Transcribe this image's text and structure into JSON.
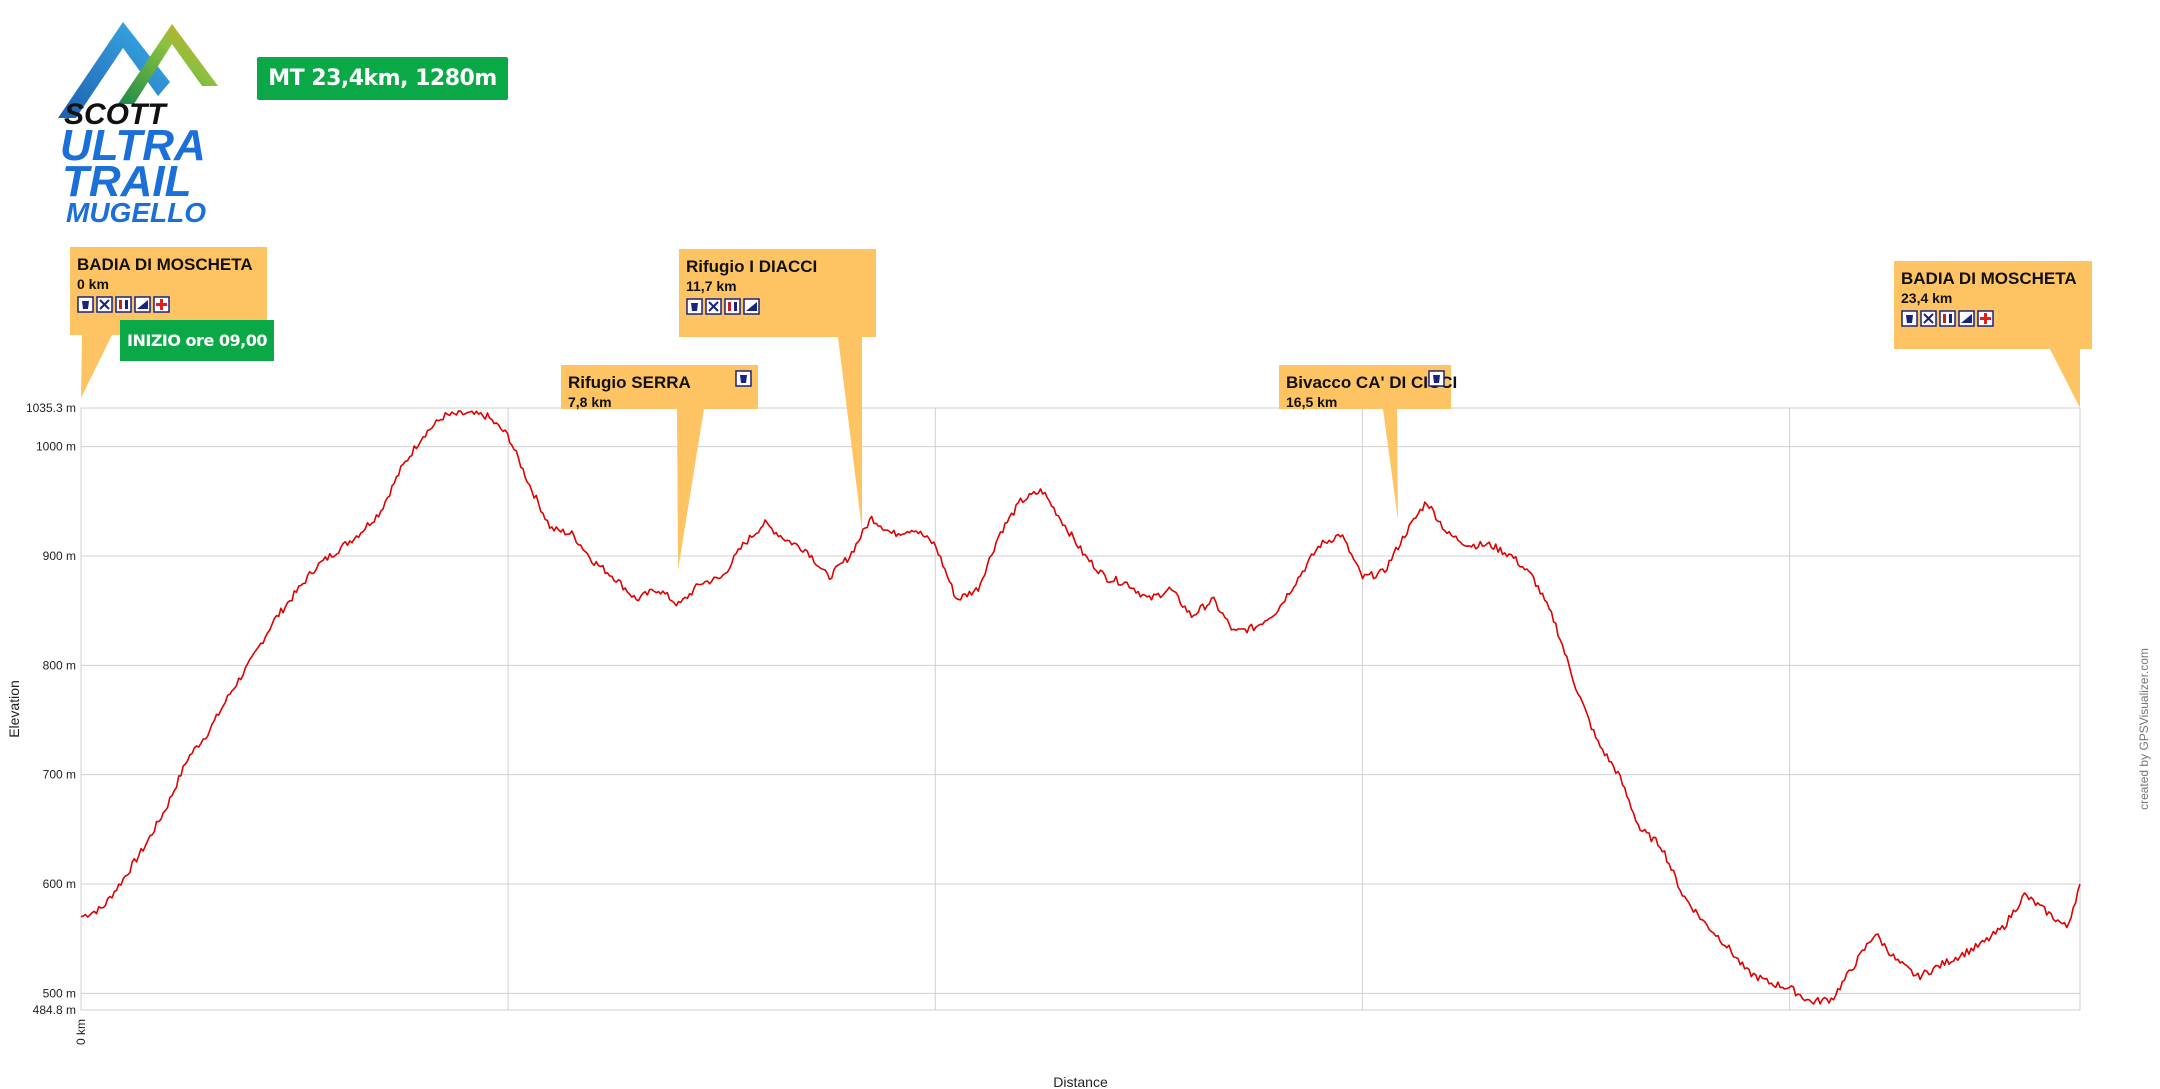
{
  "header": {
    "logo_brand": "SCOTT",
    "logo_line1": "ULTRA",
    "logo_line2": "TRAIL",
    "logo_line3": "MUGELLO",
    "race_badge": "MT 23,4km, 1280m",
    "start_badge": "INIZIO ore 09,00",
    "credit": "created by GPSVisualizer.com"
  },
  "colors": {
    "profile_line": "#e00000",
    "annotation_fill": "#fec463",
    "badge_green": "#0aa846",
    "grid": "#d0d0d0"
  },
  "annotations": [
    {
      "title": "BADIA DI MOSCHETA",
      "km_label": "0 km",
      "km": 0,
      "icons": [
        "water-icon",
        "cutlery-icon",
        "toilet-icon",
        "drop-bag-icon",
        "first-aid-icon"
      ]
    },
    {
      "title": "Rifugio SERRA",
      "km_label": "7,8 km",
      "km": 7.8,
      "icons": [
        "water-icon"
      ]
    },
    {
      "title": "Rifugio I DIACCI",
      "km_label": "11,7  km",
      "km": 11.7,
      "icons": [
        "water-icon",
        "cutlery-icon",
        "toilet-icon",
        "drop-bag-icon"
      ]
    },
    {
      "title": "Bivacco CA' DI CICCI",
      "km_label": "16,5 km",
      "km": 16.5,
      "icons": [
        "water-icon"
      ]
    },
    {
      "title": "BADIA DI MOSCHETA",
      "km_label": "23,4 km",
      "km": 23.4,
      "icons": [
        "water-icon",
        "cutlery-icon",
        "toilet-icon",
        "drop-bag-icon",
        "first-aid-icon"
      ]
    }
  ],
  "chart_data": {
    "type": "line",
    "xlabel": "Distance",
    "ylabel": "Elevation",
    "xlim": [
      0,
      23.4
    ],
    "ylim": [
      484.8,
      1035.3
    ],
    "x_tick_labels": [
      "0 km"
    ],
    "y_ticks": [
      500,
      600,
      700,
      800,
      900,
      1000
    ],
    "y_tick_labels": [
      "500 m",
      "600 m",
      "700 m",
      "800 m",
      "900 m",
      "1000 m"
    ],
    "y_min_label": "484.8 m",
    "y_max_label": "1035.3 m",
    "grid": true,
    "series": [
      {
        "x": [
          0,
          0.25,
          0.5,
          0.75,
          1.0,
          1.25,
          1.5,
          1.75,
          2.0,
          2.25,
          2.5,
          2.75,
          3.0,
          3.25,
          3.5,
          3.75,
          4.0,
          4.25,
          4.5,
          4.75,
          5.0,
          5.25,
          5.5,
          5.75,
          6.0,
          6.25,
          6.5,
          6.75,
          7.0,
          7.25,
          7.5,
          7.75,
          8.0,
          8.25,
          8.5,
          8.75,
          9.0,
          9.25,
          9.5,
          9.75,
          10.0,
          10.25,
          10.5,
          10.75,
          11.0,
          11.25,
          11.5,
          11.75,
          12.0,
          12.25,
          12.5,
          12.75,
          13.0,
          13.25,
          13.5,
          13.75,
          14.0,
          14.25,
          14.5,
          14.75,
          15.0,
          15.25,
          15.5,
          15.75,
          16.0,
          16.25,
          16.5,
          16.75,
          17.0,
          17.25,
          17.5,
          17.75,
          18.0,
          18.25,
          18.5,
          18.75,
          19.0,
          19.25,
          19.5,
          19.75,
          20.0,
          20.25,
          20.5,
          20.75,
          21.0,
          21.25,
          21.5,
          21.75,
          22.0,
          22.25,
          22.5,
          22.75,
          23.0,
          23.25,
          23.4
        ],
        "y": [
          570,
          578,
          605,
          635,
          670,
          715,
          740,
          775,
          805,
          840,
          865,
          890,
          905,
          920,
          940,
          980,
          1010,
          1028,
          1030,
          1028,
          1010,
          965,
          925,
          920,
          895,
          880,
          860,
          870,
          855,
          875,
          880,
          910,
          930,
          915,
          905,
          880,
          900,
          935,
          920,
          925,
          910,
          860,
          870,
          920,
          950,
          960,
          930,
          900,
          880,
          875,
          860,
          870,
          845,
          860,
          830,
          835,
          850,
          880,
          910,
          920,
          880,
          885,
          920,
          950,
          920,
          910,
          910,
          900,
          880,
          840,
          780,
          730,
          700,
          650,
          635,
          590,
          565,
          545,
          520,
          510,
          505,
          492,
          495,
          525,
          555,
          530,
          515,
          525,
          535,
          545,
          560,
          590,
          575,
          560,
          600
        ]
      }
    ]
  }
}
